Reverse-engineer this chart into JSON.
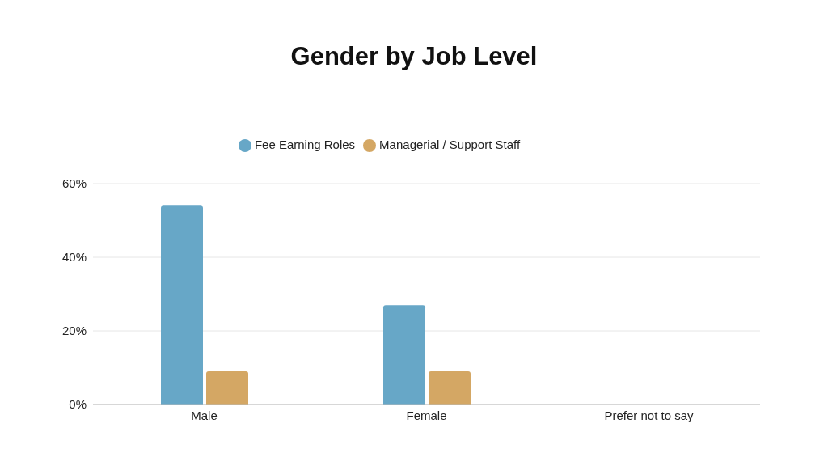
{
  "chart_data": {
    "type": "bar",
    "title": "Gender by Job Level",
    "categories": [
      "Male",
      "Female",
      "Prefer not to say"
    ],
    "series": [
      {
        "name": "Fee Earning Roles",
        "color": "#67a7c7",
        "values": [
          54,
          27,
          0
        ]
      },
      {
        "name": "Managerial / Support Staff",
        "color": "#d4a764",
        "values": [
          9,
          9,
          0
        ]
      }
    ],
    "ylim": [
      0,
      60
    ],
    "yticks": [
      {
        "value": 0,
        "label": "0%"
      },
      {
        "value": 20,
        "label": "20%"
      },
      {
        "value": 40,
        "label": "40%"
      },
      {
        "value": 60,
        "label": "60%"
      }
    ],
    "grid": "y",
    "legend": "top"
  }
}
